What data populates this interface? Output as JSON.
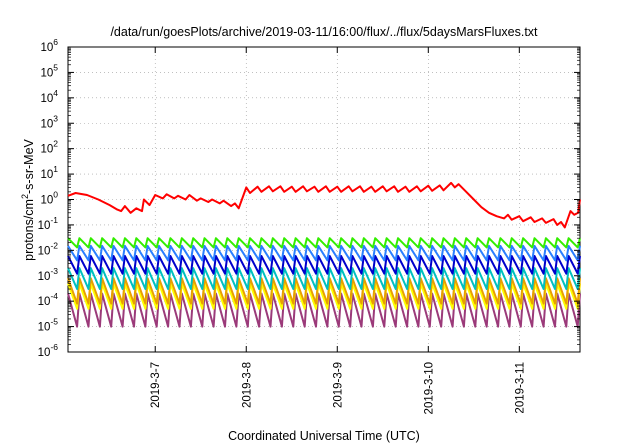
{
  "chart_data": {
    "type": "line",
    "title": "/data/run/goesPlots/archive/2019-03-11/16:00/flux/../flux/5daysMarsFluxes.txt",
    "xlabel": "Coordinated Universal Time (UTC)",
    "ylabel": {
      "base": "protons/cm",
      "sup": "2",
      "rest": "-s-sr-MeV"
    },
    "yscale": "log",
    "ylim": [
      1e-06,
      1000000.0
    ],
    "y_ticks": [
      {
        "value": 1e-06,
        "base": "10",
        "exp": "-6"
      },
      {
        "value": 1e-05,
        "base": "10",
        "exp": "-5"
      },
      {
        "value": 0.0001,
        "base": "10",
        "exp": "-4"
      },
      {
        "value": 0.001,
        "base": "10",
        "exp": "-3"
      },
      {
        "value": 0.01,
        "base": "10",
        "exp": "-2"
      },
      {
        "value": 0.1,
        "base": "10",
        "exp": "-1"
      },
      {
        "value": 1,
        "base": "10",
        "exp": "0"
      },
      {
        "value": 10.0,
        "base": "10",
        "exp": "1"
      },
      {
        "value": 100.0,
        "base": "10",
        "exp": "2"
      },
      {
        "value": 1000.0,
        "base": "10",
        "exp": "3"
      },
      {
        "value": 10000.0,
        "base": "10",
        "exp": "4"
      },
      {
        "value": 100000.0,
        "base": "10",
        "exp": "5"
      },
      {
        "value": 1000000.0,
        "base": "10",
        "exp": "6"
      }
    ],
    "xlim": [
      "2019-03-06 01:00",
      "2019-03-11 16:00"
    ],
    "x_ticks": [
      {
        "value": "2019-03-07 00:00",
        "label": "2019-3-7"
      },
      {
        "value": "2019-03-08 00:00",
        "label": "2019-3-8"
      },
      {
        "value": "2019-03-09 00:00",
        "label": "2019-3-9"
      },
      {
        "value": "2019-03-10 00:00",
        "label": "2019-3-10"
      },
      {
        "value": "2019-03-11 00:00",
        "label": "2019-3-11"
      }
    ],
    "grid": true,
    "legend": "none",
    "colors": {
      "red": "#ff0000",
      "green": "#33ee00",
      "dodgerblue": "#2a7fff",
      "blue": "#0000cc",
      "cyan": "#00c0c0",
      "yellow": "#ffff00",
      "orange": "#e8a000",
      "purple": "#9b3a7a"
    },
    "series": [
      {
        "color": "red",
        "points": [
          [
            "2019-03-06 01:00",
            1.4
          ],
          [
            "2019-03-06 03:00",
            1.8
          ],
          [
            "2019-03-06 06:00",
            1.5
          ],
          [
            "2019-03-06 09:00",
            1.0
          ],
          [
            "2019-03-06 12:00",
            0.6
          ],
          [
            "2019-03-06 14:00",
            0.4
          ],
          [
            "2019-03-06 15:00",
            0.35
          ],
          [
            "2019-03-06 16:00",
            0.55
          ],
          [
            "2019-03-06 17:30",
            0.3
          ],
          [
            "2019-03-06 19:00",
            0.45
          ],
          [
            "2019-03-06 20:30",
            0.35
          ],
          [
            "2019-03-06 21:00",
            1.0
          ],
          [
            "2019-03-06 22:30",
            0.6
          ],
          [
            "2019-03-07 00:00",
            1.5
          ],
          [
            "2019-03-07 02:00",
            1.1
          ],
          [
            "2019-03-07 03:00",
            1.6
          ],
          [
            "2019-03-07 05:00",
            1.1
          ],
          [
            "2019-03-07 06:00",
            1.4
          ],
          [
            "2019-03-07 08:00",
            1.0
          ],
          [
            "2019-03-07 09:00",
            1.5
          ],
          [
            "2019-03-07 11:00",
            0.9
          ],
          [
            "2019-03-07 12:00",
            1.1
          ],
          [
            "2019-03-07 14:00",
            0.8
          ],
          [
            "2019-03-07 15:00",
            1.0
          ],
          [
            "2019-03-07 17:00",
            0.7
          ],
          [
            "2019-03-07 18:00",
            0.9
          ],
          [
            "2019-03-07 20:00",
            0.55
          ],
          [
            "2019-03-07 21:00",
            0.7
          ],
          [
            "2019-03-07 22:00",
            0.45
          ],
          [
            "2019-03-08 00:00",
            3.0
          ],
          [
            "2019-03-08 01:00",
            1.8
          ],
          [
            "2019-03-08 03:00",
            3.2
          ],
          [
            "2019-03-08 04:00",
            2.0
          ],
          [
            "2019-03-08 06:00",
            3.3
          ],
          [
            "2019-03-08 07:00",
            2.1
          ],
          [
            "2019-03-08 09:00",
            3.3
          ],
          [
            "2019-03-08 10:00",
            2.0
          ],
          [
            "2019-03-08 12:00",
            3.2
          ],
          [
            "2019-03-08 13:00",
            2.0
          ],
          [
            "2019-03-08 15:00",
            3.3
          ],
          [
            "2019-03-08 16:00",
            2.1
          ],
          [
            "2019-03-08 18:00",
            3.2
          ],
          [
            "2019-03-08 19:00",
            2.0
          ],
          [
            "2019-03-08 21:00",
            3.3
          ],
          [
            "2019-03-08 22:00",
            2.0
          ],
          [
            "2019-03-09 00:00",
            3.2
          ],
          [
            "2019-03-09 01:00",
            2.0
          ],
          [
            "2019-03-09 03:00",
            3.3
          ],
          [
            "2019-03-09 04:00",
            2.1
          ],
          [
            "2019-03-09 06:00",
            3.3
          ],
          [
            "2019-03-09 07:00",
            2.0
          ],
          [
            "2019-03-09 09:00",
            3.2
          ],
          [
            "2019-03-09 10:00",
            2.0
          ],
          [
            "2019-03-09 12:00",
            3.3
          ],
          [
            "2019-03-09 13:00",
            2.1
          ],
          [
            "2019-03-09 15:00",
            3.3
          ],
          [
            "2019-03-09 16:00",
            2.0
          ],
          [
            "2019-03-09 18:00",
            3.2
          ],
          [
            "2019-03-09 19:00",
            2.0
          ],
          [
            "2019-03-09 21:00",
            3.3
          ],
          [
            "2019-03-09 22:00",
            2.1
          ],
          [
            "2019-03-10 00:00",
            3.5
          ],
          [
            "2019-03-10 01:00",
            2.2
          ],
          [
            "2019-03-10 03:00",
            3.6
          ],
          [
            "2019-03-10 04:00",
            2.3
          ],
          [
            "2019-03-10 06:00",
            4.5
          ],
          [
            "2019-03-10 07:00",
            3.0
          ],
          [
            "2019-03-10 08:00",
            4.0
          ],
          [
            "2019-03-10 10:00",
            2.0
          ],
          [
            "2019-03-10 12:00",
            1.0
          ],
          [
            "2019-03-10 14:00",
            0.5
          ],
          [
            "2019-03-10 16:00",
            0.3
          ],
          [
            "2019-03-10 18:00",
            0.22
          ],
          [
            "2019-03-10 20:00",
            0.18
          ],
          [
            "2019-03-10 21:00",
            0.25
          ],
          [
            "2019-03-10 22:00",
            0.16
          ],
          [
            "2019-03-11 00:00",
            0.22
          ],
          [
            "2019-03-11 01:00",
            0.14
          ],
          [
            "2019-03-11 03:00",
            0.2
          ],
          [
            "2019-03-11 04:00",
            0.13
          ],
          [
            "2019-03-11 06:00",
            0.18
          ],
          [
            "2019-03-11 07:00",
            0.12
          ],
          [
            "2019-03-11 09:00",
            0.17
          ],
          [
            "2019-03-11 10:00",
            0.1
          ],
          [
            "2019-03-11 11:00",
            0.13
          ],
          [
            "2019-03-11 12:00",
            0.08
          ],
          [
            "2019-03-11 13:30",
            0.35
          ],
          [
            "2019-03-11 14:30",
            0.25
          ],
          [
            "2019-03-11 15:30",
            0.3
          ],
          [
            "2019-03-11 16:00",
            1.0
          ]
        ]
      },
      {
        "color": "green",
        "pattern": "sawtooth",
        "peak": 0.03,
        "trough": 0.013,
        "period_hours": 3
      },
      {
        "color": "dodgerblue",
        "pattern": "sawtooth",
        "peak": 0.015,
        "trough": 0.004,
        "period_hours": 3
      },
      {
        "color": "blue",
        "pattern": "sawtooth",
        "peak": 0.006,
        "trough": 0.0012,
        "period_hours": 3
      },
      {
        "color": "cyan",
        "pattern": "sawtooth",
        "peak": 0.002,
        "trough": 0.0003,
        "period_hours": 3
      },
      {
        "color": "orange",
        "pattern": "sawtooth",
        "peak": 0.0008,
        "trough": 8e-05,
        "period_hours": 3
      },
      {
        "color": "yellow",
        "pattern": "sawtooth",
        "peak": 0.0005,
        "trough": 5e-05,
        "period_hours": 3
      },
      {
        "color": "purple",
        "pattern": "sawtooth",
        "peak": 0.0002,
        "trough": 1e-05,
        "period_hours": 3
      }
    ]
  }
}
